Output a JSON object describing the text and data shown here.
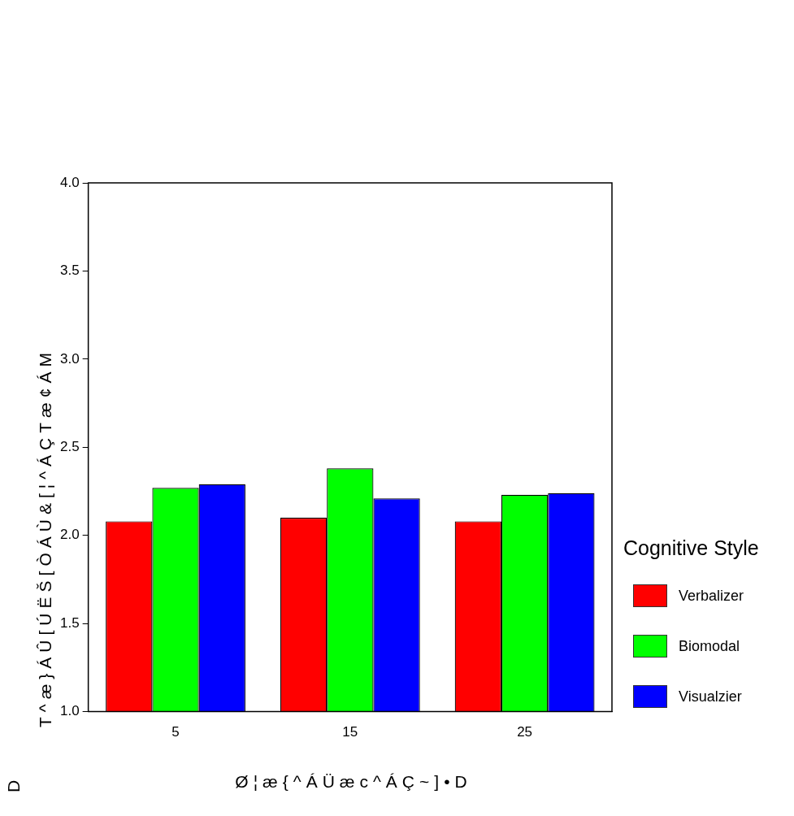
{
  "chart_data": {
    "type": "bar",
    "xlabel": "Ø¦æ{^ÁÜæc^ÁÇ~]•D",
    "ylabel": "T^æ}ÁÛ[ÚËŠ[ÒÁÙ&[¦^ÁÇTæ¢ÁM",
    "legend_title": "Cognitive Style",
    "categories": [
      "5",
      "15",
      "25"
    ],
    "series": [
      {
        "name": "Verbalizer",
        "color": "#ff0000",
        "values": [
          2.08,
          2.1,
          2.08
        ]
      },
      {
        "name": "Biomodal",
        "color": "#00ff00",
        "values": [
          2.27,
          2.38,
          2.23
        ]
      },
      {
        "name": "Visualzier",
        "color": "#0000ff",
        "values": [
          2.29,
          2.21,
          2.24
        ]
      }
    ],
    "ylim": [
      1.0,
      4.0
    ],
    "yticks": [
      {
        "value": 1,
        "label": "1.0"
      },
      {
        "value": 1.5,
        "label": "1.5"
      },
      {
        "value": 2,
        "label": "2.0"
      },
      {
        "value": 2.5,
        "label": "2.5"
      },
      {
        "value": 3,
        "label": "3.0"
      },
      {
        "value": 3.5,
        "label": "3.5"
      },
      {
        "value": 4,
        "label": "4.0"
      }
    ],
    "grid": false,
    "legend": "right",
    "annotations": [
      "D"
    ]
  }
}
